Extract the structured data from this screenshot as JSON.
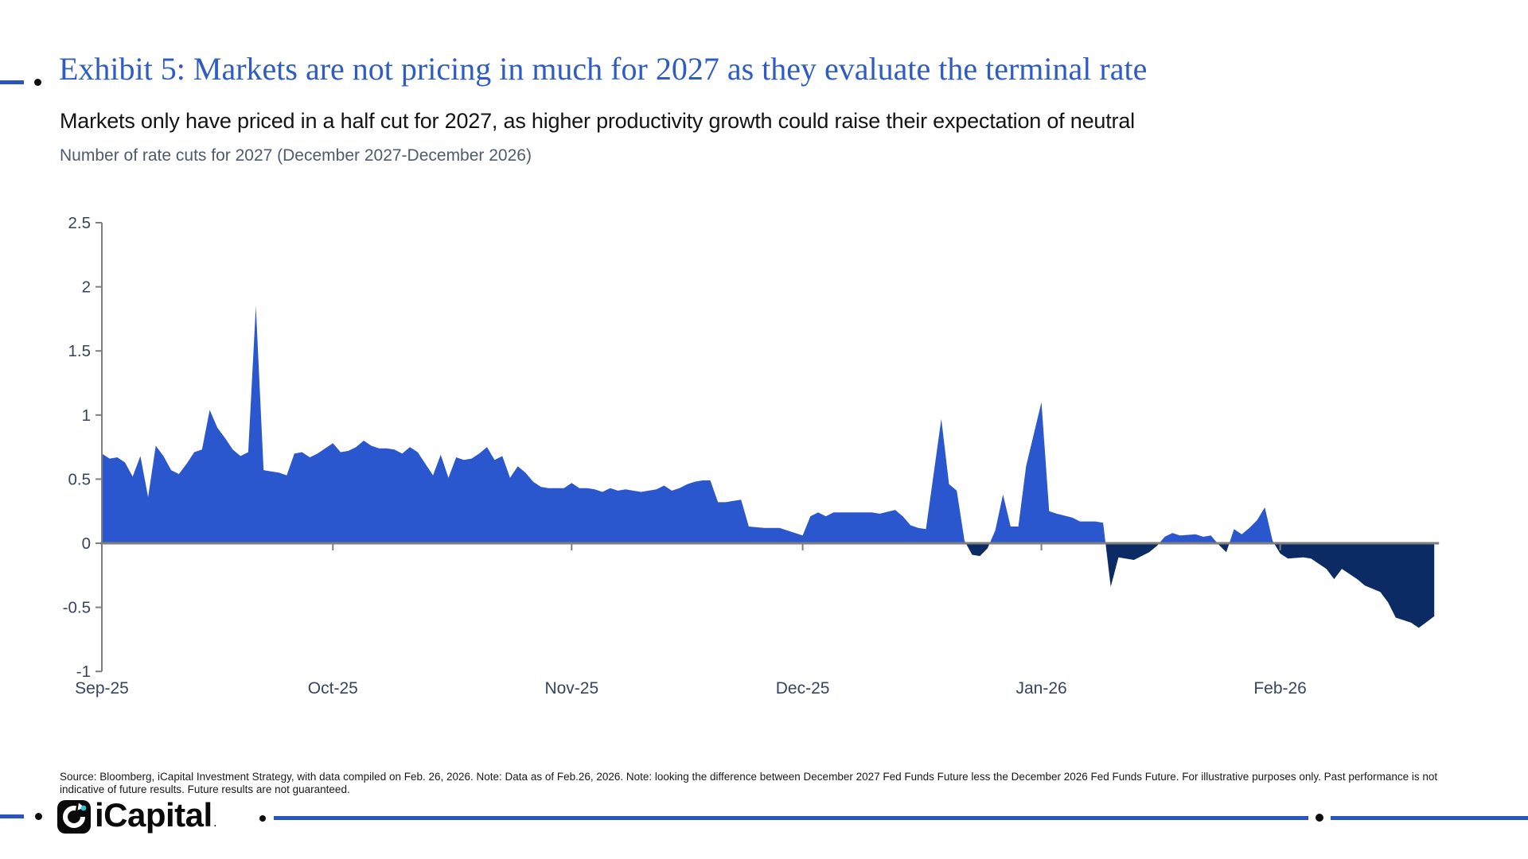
{
  "header": {
    "exhibit_title": "Exhibit 5: Markets are not pricing in much for 2027 as they evaluate the terminal rate",
    "subtitle": "Markets only have priced in a half cut for 2027, as higher productivity growth could raise their expectation of neutral",
    "chart_note": "Number of rate cuts for 2027 (December 2027-December 2026)"
  },
  "source_note": "Source: Bloomberg, iCapital Investment Strategy, with data compiled on Feb. 26, 2026. Note: Data as of Feb.26, 2026. Note: looking the difference between December 2027 Fed Funds Future less the December 2026 Fed Funds Future. For illustrative purposes only. Past performance is not indicative of future results. Future results are not guaranteed.",
  "footer": {
    "wordmark": "iCapital",
    "trademark": "."
  },
  "colors": {
    "title_blue": "#2e5cc5",
    "rule_blue": "#2a55c0",
    "area_positive": "#2a57cd",
    "area_negative": "#0c2a63",
    "axis_gray": "#7e7e7e",
    "axis_label": "#36455e",
    "logo_teal": "#35c4cf"
  },
  "chart_data": {
    "type": "area",
    "title": "Number of rate cuts for 2027 (December 2027-December 2026)",
    "xlabel": "",
    "ylabel": "",
    "ylim": [
      -1,
      2.5
    ],
    "grid": false,
    "legend": false,
    "positive_color": "#2a57cd",
    "negative_color": "#0c2a63",
    "y_ticks": [
      {
        "v": 2.5,
        "label": "2.5"
      },
      {
        "v": 2,
        "label": "2"
      },
      {
        "v": 1.5,
        "label": "1.5"
      },
      {
        "v": 1,
        "label": "1"
      },
      {
        "v": 0.5,
        "label": "0.5"
      },
      {
        "v": 0,
        "label": "0"
      },
      {
        "v": -0.5,
        "label": "-0.5"
      },
      {
        "v": -1,
        "label": "-1"
      }
    ],
    "x_ticks": [
      {
        "date": "2025-09-01",
        "label": "Sep-25"
      },
      {
        "date": "2025-10-01",
        "label": "Oct-25"
      },
      {
        "date": "2025-11-01",
        "label": "Nov-25"
      },
      {
        "date": "2025-12-01",
        "label": "Dec-25"
      },
      {
        "date": "2026-01-01",
        "label": "Jan-26"
      },
      {
        "date": "2026-02-01",
        "label": "Feb-26"
      }
    ],
    "x_range": [
      "2025-09-01",
      "2026-02-21"
    ],
    "series": [
      {
        "name": "Number of rate cuts priced for 2027 (Dec-2027 minus Dec-2026 Fed Funds futures)",
        "points": [
          [
            "2025-09-01",
            0.7
          ],
          [
            "2025-09-02",
            0.66
          ],
          [
            "2025-09-03",
            0.67
          ],
          [
            "2025-09-04",
            0.63
          ],
          [
            "2025-09-05",
            0.52
          ],
          [
            "2025-09-06",
            0.68
          ],
          [
            "2025-09-07",
            0.36
          ],
          [
            "2025-09-08",
            0.76
          ],
          [
            "2025-09-09",
            0.68
          ],
          [
            "2025-09-10",
            0.57
          ],
          [
            "2025-09-11",
            0.54
          ],
          [
            "2025-09-12",
            0.62
          ],
          [
            "2025-09-13",
            0.71
          ],
          [
            "2025-09-14",
            0.73
          ],
          [
            "2025-09-15",
            1.04
          ],
          [
            "2025-09-16",
            0.9
          ],
          [
            "2025-09-17",
            0.82
          ],
          [
            "2025-09-18",
            0.73
          ],
          [
            "2025-09-19",
            0.68
          ],
          [
            "2025-09-20",
            0.71
          ],
          [
            "2025-09-21",
            1.85
          ],
          [
            "2025-09-22",
            0.57
          ],
          [
            "2025-09-23",
            0.56
          ],
          [
            "2025-09-24",
            0.55
          ],
          [
            "2025-09-25",
            0.53
          ],
          [
            "2025-09-26",
            0.7
          ],
          [
            "2025-09-27",
            0.71
          ],
          [
            "2025-09-28",
            0.67
          ],
          [
            "2025-09-29",
            0.7
          ],
          [
            "2025-09-30",
            0.74
          ],
          [
            "2025-10-01",
            0.78
          ],
          [
            "2025-10-02",
            0.71
          ],
          [
            "2025-10-03",
            0.72
          ],
          [
            "2025-10-04",
            0.75
          ],
          [
            "2025-10-05",
            0.8
          ],
          [
            "2025-10-06",
            0.76
          ],
          [
            "2025-10-07",
            0.74
          ],
          [
            "2025-10-08",
            0.74
          ],
          [
            "2025-10-09",
            0.73
          ],
          [
            "2025-10-10",
            0.7
          ],
          [
            "2025-10-11",
            0.75
          ],
          [
            "2025-10-12",
            0.71
          ],
          [
            "2025-10-13",
            0.62
          ],
          [
            "2025-10-14",
            0.53
          ],
          [
            "2025-10-15",
            0.69
          ],
          [
            "2025-10-16",
            0.51
          ],
          [
            "2025-10-17",
            0.67
          ],
          [
            "2025-10-18",
            0.65
          ],
          [
            "2025-10-19",
            0.66
          ],
          [
            "2025-10-20",
            0.7
          ],
          [
            "2025-10-21",
            0.75
          ],
          [
            "2025-10-22",
            0.65
          ],
          [
            "2025-10-23",
            0.68
          ],
          [
            "2025-10-24",
            0.51
          ],
          [
            "2025-10-25",
            0.6
          ],
          [
            "2025-10-26",
            0.55
          ],
          [
            "2025-10-27",
            0.48
          ],
          [
            "2025-10-28",
            0.44
          ],
          [
            "2025-10-29",
            0.43
          ],
          [
            "2025-10-31",
            0.43
          ],
          [
            "2025-11-01",
            0.47
          ],
          [
            "2025-11-02",
            0.43
          ],
          [
            "2025-11-03",
            0.43
          ],
          [
            "2025-11-04",
            0.42
          ],
          [
            "2025-11-05",
            0.4
          ],
          [
            "2025-11-06",
            0.43
          ],
          [
            "2025-11-07",
            0.41
          ],
          [
            "2025-11-08",
            0.42
          ],
          [
            "2025-11-09",
            0.41
          ],
          [
            "2025-11-10",
            0.4
          ],
          [
            "2025-11-11",
            0.41
          ],
          [
            "2025-11-12",
            0.42
          ],
          [
            "2025-11-13",
            0.45
          ],
          [
            "2025-11-14",
            0.41
          ],
          [
            "2025-11-15",
            0.43
          ],
          [
            "2025-11-16",
            0.46
          ],
          [
            "2025-11-17",
            0.48
          ],
          [
            "2025-11-18",
            0.49
          ],
          [
            "2025-11-19",
            0.49
          ],
          [
            "2025-11-20",
            0.32
          ],
          [
            "2025-11-21",
            0.32
          ],
          [
            "2025-11-22",
            0.33
          ],
          [
            "2025-11-23",
            0.34
          ],
          [
            "2025-11-24",
            0.13
          ],
          [
            "2025-11-26",
            0.12
          ],
          [
            "2025-11-28",
            0.12
          ],
          [
            "2025-12-01",
            0.06
          ],
          [
            "2025-12-02",
            0.21
          ],
          [
            "2025-12-03",
            0.24
          ],
          [
            "2025-12-04",
            0.21
          ],
          [
            "2025-12-05",
            0.24
          ],
          [
            "2025-12-07",
            0.24
          ],
          [
            "2025-12-08",
            0.24
          ],
          [
            "2025-12-10",
            0.24
          ],
          [
            "2025-12-11",
            0.23
          ],
          [
            "2025-12-13",
            0.26
          ],
          [
            "2025-12-14",
            0.21
          ],
          [
            "2025-12-15",
            0.14
          ],
          [
            "2025-12-16",
            0.12
          ],
          [
            "2025-12-17",
            0.11
          ],
          [
            "2025-12-19",
            0.97
          ],
          [
            "2025-12-20",
            0.46
          ],
          [
            "2025-12-21",
            0.41
          ],
          [
            "2025-12-22",
            0.02
          ],
          [
            "2025-12-23",
            -0.09
          ],
          [
            "2025-12-24",
            -0.1
          ],
          [
            "2025-12-25",
            -0.04
          ],
          [
            "2025-12-26",
            0.1
          ],
          [
            "2025-12-27",
            0.38
          ],
          [
            "2025-12-28",
            0.13
          ],
          [
            "2025-12-29",
            0.13
          ],
          [
            "2025-12-30",
            0.6
          ],
          [
            "2026-01-01",
            1.1
          ],
          [
            "2026-01-02",
            0.25
          ],
          [
            "2026-01-03",
            0.23
          ],
          [
            "2026-01-05",
            0.2
          ],
          [
            "2026-01-06",
            0.17
          ],
          [
            "2026-01-08",
            0.17
          ],
          [
            "2026-01-09",
            0.16
          ],
          [
            "2026-01-10",
            -0.34
          ],
          [
            "2026-01-11",
            -0.11
          ],
          [
            "2026-01-13",
            -0.13
          ],
          [
            "2026-01-15",
            -0.07
          ],
          [
            "2026-01-16",
            -0.02
          ],
          [
            "2026-01-17",
            0.05
          ],
          [
            "2026-01-18",
            0.08
          ],
          [
            "2026-01-19",
            0.06
          ],
          [
            "2026-01-21",
            0.07
          ],
          [
            "2026-01-22",
            0.05
          ],
          [
            "2026-01-23",
            0.06
          ],
          [
            "2026-01-24",
            -0.01
          ],
          [
            "2026-01-25",
            -0.07
          ],
          [
            "2026-01-26",
            0.11
          ],
          [
            "2026-01-27",
            0.07
          ],
          [
            "2026-01-28",
            0.12
          ],
          [
            "2026-01-29",
            0.18
          ],
          [
            "2026-01-30",
            0.28
          ],
          [
            "2026-01-31",
            0.02
          ],
          [
            "2026-02-01",
            -0.08
          ],
          [
            "2026-02-02",
            -0.12
          ],
          [
            "2026-02-04",
            -0.11
          ],
          [
            "2026-02-05",
            -0.12
          ],
          [
            "2026-02-07",
            -0.2
          ],
          [
            "2026-02-08",
            -0.28
          ],
          [
            "2026-02-09",
            -0.2
          ],
          [
            "2026-02-11",
            -0.28
          ],
          [
            "2026-02-12",
            -0.33
          ],
          [
            "2026-02-14",
            -0.38
          ],
          [
            "2026-02-15",
            -0.46
          ],
          [
            "2026-02-16",
            -0.58
          ],
          [
            "2026-02-18",
            -0.62
          ],
          [
            "2026-02-19",
            -0.66
          ],
          [
            "2026-02-21",
            -0.57
          ]
        ]
      }
    ]
  }
}
